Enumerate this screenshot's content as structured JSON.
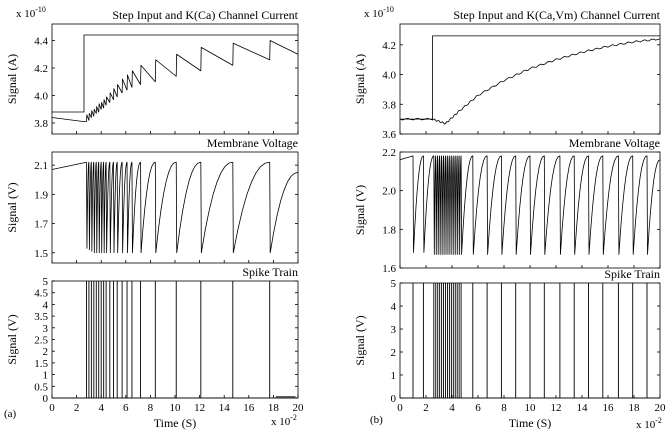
{
  "chart_data": [
    {
      "type": "figure",
      "label": "(a)",
      "x_axis": {
        "label": "Time (S)",
        "exponent": "x 10",
        "exponent_power": "-2",
        "xlim": [
          0,
          20
        ],
        "ticks": [
          "0",
          "2",
          "4",
          "6",
          "8",
          "10",
          "12",
          "14",
          "16",
          "18",
          "20"
        ]
      },
      "panels": [
        {
          "type": "line",
          "title": "Step Input and K(Ca) Channel Current",
          "ylabel": "Signal (A)",
          "y_exponent": "x 10",
          "y_exponent_power": "-10",
          "ylim": [
            3.72,
            4.52
          ],
          "yticks": [
            "3.8",
            "4.0",
            "4.2",
            "4.4"
          ],
          "series": [
            {
              "kind": "step",
              "x": [
                0,
                2.6,
                2.6,
                20
              ],
              "y": [
                3.88,
                3.88,
                4.44,
                4.44
              ]
            },
            {
              "kind": "sawtooth",
              "x_start": 0,
              "y_start": 3.84,
              "x_onset": 2.6,
              "x_spikes": [
                2.8,
                3.0,
                3.2,
                3.4,
                3.6,
                3.8,
                4.0,
                4.2,
                4.4,
                4.7,
                5.0,
                5.3,
                5.7,
                6.1,
                6.5,
                7.2,
                8.4,
                10.1,
                12.1,
                14.7,
                17.7
              ],
              "peaks": [
                3.86,
                3.87,
                3.89,
                3.9,
                3.92,
                3.94,
                3.95,
                3.97,
                3.99,
                4.02,
                4.05,
                4.08,
                4.12,
                4.15,
                4.18,
                4.22,
                4.26,
                4.3,
                4.35,
                4.38,
                4.4
              ],
              "valleys": [
                3.81,
                3.82,
                3.84,
                3.85,
                3.87,
                3.88,
                3.9,
                3.91,
                3.93,
                3.95,
                3.97,
                3.99,
                4.02,
                4.04,
                4.06,
                4.08,
                4.1,
                4.14,
                4.18,
                4.22,
                4.26
              ],
              "y_end": 4.3
            }
          ]
        },
        {
          "type": "line",
          "title": "Membrane Voltage",
          "ylabel": "Signal (V)",
          "ylim": [
            1.43,
            2.19
          ],
          "yticks": [
            "1.5",
            "1.7",
            "1.9",
            "2.1"
          ],
          "series": [
            {
              "kind": "oscillation",
              "spike_value": 2.12,
              "x_spikes": [
                2.8,
                3.0,
                3.2,
                3.4,
                3.6,
                3.8,
                4.0,
                4.2,
                4.4,
                4.7,
                5.0,
                5.3,
                5.7,
                6.1,
                6.5,
                7.2,
                8.4,
                10.1,
                12.1,
                14.7,
                17.7
              ],
              "resets": [
                1.53,
                1.52,
                1.51,
                1.5,
                1.5,
                1.5,
                1.5,
                1.5,
                1.5,
                1.5,
                1.5,
                1.5,
                1.5,
                1.5,
                1.5,
                1.5,
                1.5,
                1.5,
                1.5,
                1.5,
                1.5
              ],
              "start_value": 2.07,
              "end_value": 2.05
            }
          ]
        },
        {
          "type": "line",
          "title": "Spike Train",
          "ylabel": "Signal (V)",
          "ylim": [
            0,
            5
          ],
          "yticks": [
            "0",
            "0.5",
            "1",
            "1.5",
            "2",
            "2.5",
            "3",
            "3.5",
            "4",
            "4.5",
            "5"
          ],
          "series": [
            {
              "kind": "spikes",
              "height": 5,
              "x_spikes": [
                2.8,
                3.0,
                3.2,
                3.4,
                3.6,
                3.8,
                4.0,
                4.2,
                4.4,
                4.7,
                5.0,
                5.3,
                5.7,
                6.1,
                6.5,
                7.2,
                8.4,
                10.1,
                12.1,
                14.7,
                17.7
              ]
            },
            {
              "kind": "segment",
              "x": [
                18.2,
                19.8
              ],
              "y": [
                0.05,
                0.05
              ],
              "color": "#d62728"
            }
          ]
        }
      ]
    },
    {
      "type": "figure",
      "label": "(b)",
      "x_axis": {
        "label": "Time (S)",
        "exponent": "x 10",
        "exponent_power": "-2",
        "xlim": [
          0,
          20
        ],
        "ticks": [
          "0",
          "2",
          "4",
          "6",
          "8",
          "10",
          "12",
          "14",
          "16",
          "18",
          "20"
        ]
      },
      "panels": [
        {
          "type": "line",
          "title": "Step Input and K(Ca,Vm) Channel Current",
          "ylabel": "Signal (A)",
          "y_exponent": "x 10",
          "y_exponent_power": "-10",
          "ylim": [
            3.6,
            4.34
          ],
          "yticks": [
            "3.6",
            "3.8",
            "4.0",
            "4.2"
          ],
          "series": [
            {
              "kind": "step",
              "x": [
                0,
                2.5,
                2.5,
                20
              ],
              "y": [
                3.7,
                3.7,
                4.26,
                4.26
              ]
            },
            {
              "kind": "rise",
              "x": [
                0,
                2.5,
                3.5,
                4.5,
                6,
                8,
                10,
                12,
                14,
                16,
                18,
                20
              ],
              "y": [
                3.7,
                3.7,
                3.67,
                3.75,
                3.86,
                3.96,
                4.04,
                4.1,
                4.15,
                4.19,
                4.22,
                4.24
              ]
            }
          ]
        },
        {
          "type": "line",
          "title": "Membrane Voltage",
          "ylabel": "Signal (V)",
          "ylim": [
            1.6,
            2.2
          ],
          "yticks": [
            "1.6",
            "1.8",
            "2.0",
            "2.2"
          ],
          "series": [
            {
              "kind": "oscillation",
              "spike_value": 2.18,
              "x_spikes": [
                1.0,
                1.8,
                2.6,
                2.75,
                2.9,
                3.05,
                3.2,
                3.35,
                3.5,
                3.65,
                3.8,
                3.95,
                4.1,
                4.25,
                4.4,
                4.55,
                4.7,
                5.6,
                6.7,
                7.8,
                8.9,
                10.0,
                11.1,
                12.3,
                13.4,
                14.5,
                15.6,
                16.8,
                17.9,
                19.0
              ],
              "resets": [
                1.68,
                1.68,
                1.67,
                1.67,
                1.67,
                1.67,
                1.67,
                1.67,
                1.67,
                1.67,
                1.67,
                1.67,
                1.67,
                1.67,
                1.67,
                1.67,
                1.67,
                1.67,
                1.67,
                1.67,
                1.67,
                1.67,
                1.67,
                1.67,
                1.67,
                1.67,
                1.67,
                1.67,
                1.67,
                1.67
              ],
              "start_value": 2.16,
              "end_value": 2.16
            }
          ]
        },
        {
          "type": "line",
          "title": "Spike Train",
          "ylabel": "Signal (V)",
          "ylim": [
            0,
            5
          ],
          "yticks": [
            "0",
            "1",
            "2",
            "3",
            "4",
            "5"
          ],
          "series": [
            {
              "kind": "spikes",
              "height": 5,
              "x_spikes": [
                1.0,
                1.8,
                2.6,
                2.75,
                2.9,
                3.05,
                3.2,
                3.35,
                3.5,
                3.65,
                3.8,
                3.95,
                4.1,
                4.25,
                4.4,
                4.55,
                4.7,
                5.6,
                6.7,
                7.8,
                8.9,
                10.0,
                11.1,
                12.3,
                13.4,
                14.5,
                15.6,
                16.8,
                17.9,
                19.0
              ]
            }
          ]
        }
      ]
    }
  ]
}
